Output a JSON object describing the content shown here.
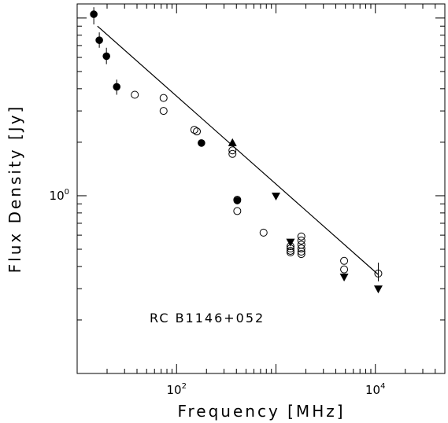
{
  "chart_data": {
    "type": "scatter",
    "title": "",
    "annotation": "RC B1146+052",
    "xlabel": "Frequency [MHz]",
    "ylabel": "Flux Density [Jy]",
    "xscale": "log",
    "yscale": "log",
    "xlim": [
      10,
      50000
    ],
    "ylim": [
      0.1,
      12
    ],
    "xtick_labels": [
      {
        "value": 100,
        "base": "10",
        "exp": "2"
      },
      {
        "value": 10000,
        "base": "10",
        "exp": "4"
      }
    ],
    "ytick_labels": [
      {
        "value": 1,
        "base": "10",
        "exp": "0"
      }
    ],
    "grid": false,
    "legend": "none",
    "series": [
      {
        "marker": "filled-circle",
        "points": [
          {
            "x": 14.7,
            "y": 10.5,
            "err_lo": 9.2,
            "err_hi": 11.5
          },
          {
            "x": 16.7,
            "y": 7.5,
            "err_lo": 6.8,
            "err_hi": 8.3
          },
          {
            "x": 19.7,
            "y": 6.1,
            "err_lo": 5.5,
            "err_hi": 6.8
          },
          {
            "x": 25,
            "y": 4.1,
            "err_lo": 3.7,
            "err_hi": 4.5
          },
          {
            "x": 178,
            "y": 1.98
          },
          {
            "x": 408,
            "y": 0.94
          }
        ]
      },
      {
        "marker": "open-circle",
        "points": [
          {
            "x": 38,
            "y": 3.7
          },
          {
            "x": 74,
            "y": 3.55
          },
          {
            "x": 74,
            "y": 3.0
          },
          {
            "x": 151,
            "y": 2.35
          },
          {
            "x": 160,
            "y": 2.3
          },
          {
            "x": 365,
            "y": 1.8
          },
          {
            "x": 365,
            "y": 1.72
          },
          {
            "x": 408,
            "y": 0.95
          },
          {
            "x": 408,
            "y": 0.82
          },
          {
            "x": 750,
            "y": 0.62
          },
          {
            "x": 1400,
            "y": 0.52
          },
          {
            "x": 1400,
            "y": 0.505
          },
          {
            "x": 1400,
            "y": 0.49
          },
          {
            "x": 1400,
            "y": 0.48
          },
          {
            "x": 1800,
            "y": 0.59
          },
          {
            "x": 1800,
            "y": 0.56
          },
          {
            "x": 1800,
            "y": 0.53
          },
          {
            "x": 1800,
            "y": 0.505
          },
          {
            "x": 1800,
            "y": 0.485
          },
          {
            "x": 1800,
            "y": 0.47
          },
          {
            "x": 4850,
            "y": 0.43
          },
          {
            "x": 4850,
            "y": 0.385
          },
          {
            "x": 10700,
            "y": 0.365,
            "err_lo": 0.33,
            "err_hi": 0.42
          }
        ]
      },
      {
        "marker": "filled-triangle-up",
        "points": [
          {
            "x": 365,
            "y": 1.98
          }
        ]
      },
      {
        "marker": "filled-triangle-down",
        "points": [
          {
            "x": 1000,
            "y": 1.0
          },
          {
            "x": 1400,
            "y": 0.55
          },
          {
            "x": 4850,
            "y": 0.35
          },
          {
            "x": 10700,
            "y": 0.3
          }
        ]
      }
    ],
    "fit_line": {
      "x": [
        16,
        10700
      ],
      "y": [
        9.0,
        0.36
      ]
    }
  }
}
